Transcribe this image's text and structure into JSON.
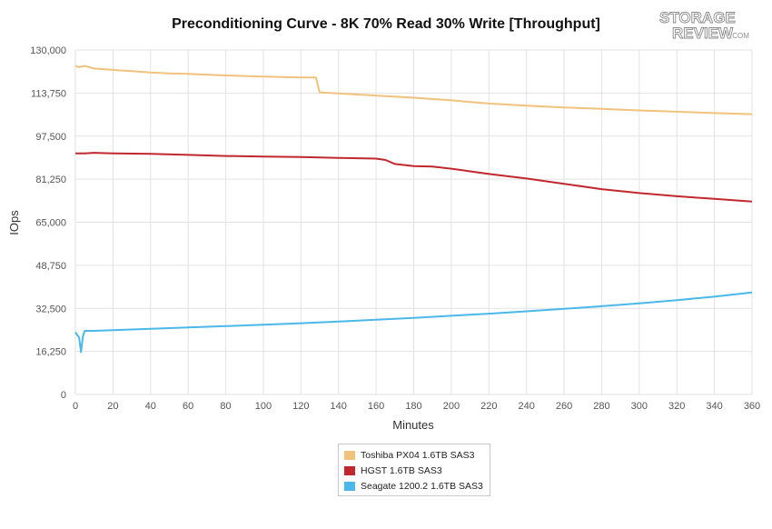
{
  "chart_data": {
    "type": "line",
    "title": "Preconditioning Curve - 8K 70% Read 30% Write [Throughput]",
    "xlabel": "Minutes",
    "ylabel": "IOps",
    "xlim": [
      0,
      360
    ],
    "ylim": [
      0,
      130000
    ],
    "x_ticks": [
      "0",
      "20",
      "40",
      "60",
      "80",
      "100",
      "120",
      "140",
      "160",
      "180",
      "200",
      "220",
      "240",
      "260",
      "280",
      "300",
      "320",
      "340",
      "360"
    ],
    "y_ticks": [
      "0",
      "16,250",
      "32,500",
      "48,750",
      "65,000",
      "81,250",
      "97,500",
      "113,750",
      "130,000"
    ],
    "grid": true,
    "legend_position": "bottom",
    "series": [
      {
        "name": "Toshiba PX04 1.6TB SAS3",
        "color": "#f0c27b",
        "x": [
          0,
          2,
          5,
          10,
          20,
          30,
          40,
          50,
          60,
          70,
          80,
          90,
          100,
          110,
          120,
          128,
          130,
          140,
          160,
          180,
          200,
          220,
          240,
          260,
          280,
          300,
          320,
          340,
          360
        ],
        "y": [
          124000,
          123500,
          124000,
          123000,
          122500,
          122000,
          121500,
          121200,
          121000,
          120700,
          120400,
          120200,
          120000,
          119800,
          119600,
          119600,
          114000,
          113600,
          112800,
          112000,
          111000,
          109800,
          109000,
          108300,
          107800,
          107200,
          106700,
          106200,
          105800
        ]
      },
      {
        "name": "HGST 1.6TB SAS3",
        "color": "#c0282d",
        "x": [
          0,
          5,
          10,
          20,
          40,
          60,
          80,
          100,
          120,
          140,
          160,
          165,
          170,
          180,
          190,
          200,
          210,
          220,
          240,
          260,
          280,
          300,
          320,
          340,
          360
        ],
        "y": [
          91000,
          91000,
          91200,
          91000,
          90800,
          90400,
          90000,
          89800,
          89600,
          89300,
          89000,
          88500,
          87000,
          86200,
          86000,
          85200,
          84200,
          83200,
          81500,
          79500,
          77500,
          76000,
          74800,
          73800,
          72800
        ]
      },
      {
        "name": "Seagate 1200.2 1.6TB SAS3",
        "color": "#4ab8ea",
        "x": [
          0,
          2,
          3,
          4,
          5,
          10,
          20,
          40,
          60,
          80,
          100,
          120,
          140,
          160,
          180,
          200,
          220,
          240,
          260,
          280,
          300,
          320,
          340,
          360
        ],
        "y": [
          23500,
          21500,
          16000,
          22000,
          24000,
          24000,
          24300,
          24800,
          25300,
          25800,
          26300,
          26900,
          27500,
          28200,
          28900,
          29700,
          30500,
          31400,
          32300,
          33300,
          34400,
          35600,
          36900,
          38500
        ]
      }
    ]
  },
  "logo_text": [
    "STORAGE",
    "REVIEW",
    ".COM"
  ]
}
